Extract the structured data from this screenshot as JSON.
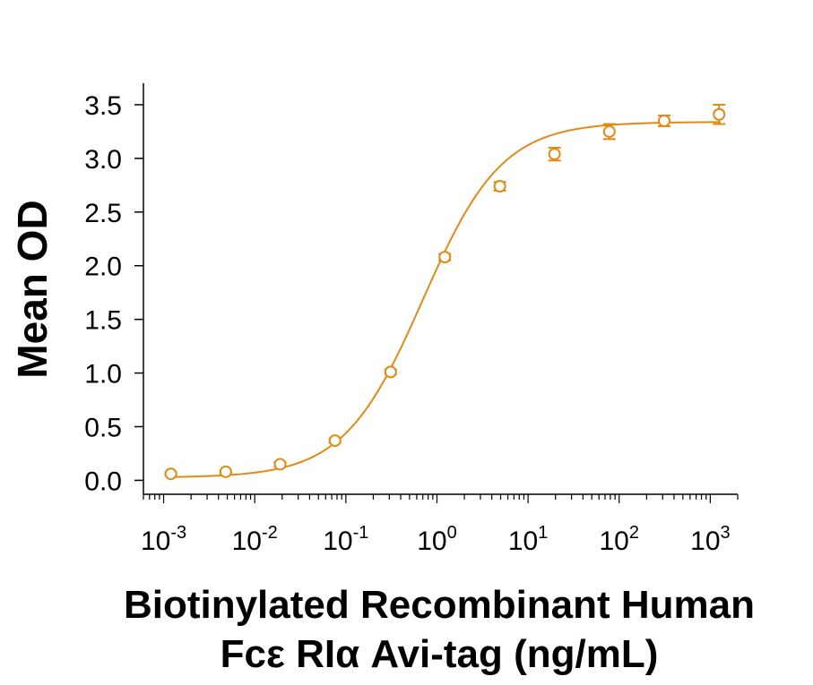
{
  "chart_data": {
    "type": "scatter",
    "title": "",
    "ylabel": "Mean OD",
    "xlabel_line1": "Biotinylated Recombinant Human",
    "xlabel_line2": "Fcε RIα Avi-tag (ng/mL)",
    "x_scale": "log",
    "xlim": [
      0.0006,
      2000
    ],
    "ylim": [
      -0.13,
      3.7
    ],
    "x_ticks": [
      0.001,
      0.01,
      0.1,
      1,
      10,
      100,
      1000
    ],
    "x_tick_labels": [
      {
        "base": "10",
        "exp": "-3"
      },
      {
        "base": "10",
        "exp": "-2"
      },
      {
        "base": "10",
        "exp": "-1"
      },
      {
        "base": "10",
        "exp": "0"
      },
      {
        "base": "10",
        "exp": "1"
      },
      {
        "base": "10",
        "exp": "2"
      },
      {
        "base": "10",
        "exp": "3"
      }
    ],
    "y_ticks": [
      0.0,
      0.5,
      1.0,
      1.5,
      2.0,
      2.5,
      3.0,
      3.5
    ],
    "y_tick_labels": [
      "0.0",
      "0.5",
      "1.0",
      "1.5",
      "2.0",
      "2.5",
      "3.0",
      "3.5"
    ],
    "grid": false,
    "color": "#E08A17",
    "series": [
      {
        "points": [
          {
            "x": 0.0012,
            "y": 0.06,
            "err": 0.01
          },
          {
            "x": 0.0048,
            "y": 0.08,
            "err": 0.01
          },
          {
            "x": 0.019,
            "y": 0.15,
            "err": 0.02
          },
          {
            "x": 0.076,
            "y": 0.37,
            "err": 0.02
          },
          {
            "x": 0.31,
            "y": 1.01,
            "err": 0.02
          },
          {
            "x": 1.22,
            "y": 2.08,
            "err": 0.03
          },
          {
            "x": 4.9,
            "y": 2.74,
            "err": 0.04
          },
          {
            "x": 19.5,
            "y": 3.04,
            "err": 0.06
          },
          {
            "x": 78,
            "y": 3.25,
            "err": 0.07
          },
          {
            "x": 312,
            "y": 3.35,
            "err": 0.05
          },
          {
            "x": 1250,
            "y": 3.41,
            "err": 0.09
          }
        ],
        "fit": {
          "model": "4PL",
          "bottom": 0.025,
          "top": 3.34,
          "ec50": 0.7,
          "hill": 1.0
        }
      }
    ]
  }
}
